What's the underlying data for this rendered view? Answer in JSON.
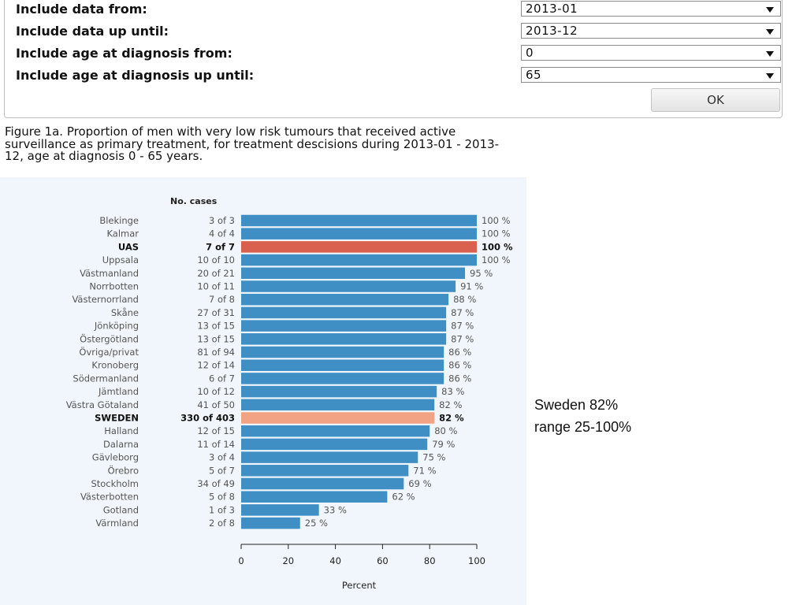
{
  "filters": [
    {
      "label": "Include data from:",
      "value": "2013-01"
    },
    {
      "label": "Include data up until:",
      "value": "2013-12"
    },
    {
      "label": "Include age at diagnosis from:",
      "value": "0"
    },
    {
      "label": "Include age at diagnosis up until:",
      "value": "65"
    }
  ],
  "ok_label": "OK",
  "caption": "Figure 1a. Proportion of men with very low risk tumours that received active surveillance as primary treatment, for treatment descisions during 2013-01 - 2013-12, age at diagnosis 0 - 65 years.",
  "annotation": {
    "line1": "Sweden 82%",
    "line2": "range 25-100%"
  },
  "colors": {
    "bar": "#3f8fc5",
    "highlight": "#d9604f",
    "national": "#f2a383"
  },
  "chart_data": {
    "type": "bar",
    "orientation": "horizontal",
    "cases_header": "No. cases",
    "xlabel": "Percent",
    "xlim": [
      0,
      100
    ],
    "xticks": [
      0,
      20,
      40,
      60,
      80,
      100
    ],
    "grid": false,
    "rows": [
      {
        "region": "Blekinge",
        "cases": "3 of 3",
        "value": 100,
        "label": "100 %",
        "style": "normal"
      },
      {
        "region": "Kalmar",
        "cases": "4 of 4",
        "value": 100,
        "label": "100 %",
        "style": "normal"
      },
      {
        "region": "UAS",
        "cases": "7 of 7",
        "value": 100,
        "label": "100 %",
        "style": "highlight"
      },
      {
        "region": "Uppsala",
        "cases": "10 of 10",
        "value": 100,
        "label": "100 %",
        "style": "normal"
      },
      {
        "region": "Västmanland",
        "cases": "20 of 21",
        "value": 95,
        "label": "95 %",
        "style": "normal"
      },
      {
        "region": "Norrbotten",
        "cases": "10 of 11",
        "value": 91,
        "label": "91 %",
        "style": "normal"
      },
      {
        "region": "Västernorrland",
        "cases": "7 of 8",
        "value": 88,
        "label": "88 %",
        "style": "normal"
      },
      {
        "region": "Skåne",
        "cases": "27 of 31",
        "value": 87,
        "label": "87 %",
        "style": "normal"
      },
      {
        "region": "Jönköping",
        "cases": "13 of 15",
        "value": 87,
        "label": "87 %",
        "style": "normal"
      },
      {
        "region": "Östergötland",
        "cases": "13 of 15",
        "value": 87,
        "label": "87 %",
        "style": "normal"
      },
      {
        "region": "Övriga/privat",
        "cases": "81 of 94",
        "value": 86,
        "label": "86 %",
        "style": "normal"
      },
      {
        "region": "Kronoberg",
        "cases": "12 of 14",
        "value": 86,
        "label": "86 %",
        "style": "normal"
      },
      {
        "region": "Södermanland",
        "cases": "6 of 7",
        "value": 86,
        "label": "86 %",
        "style": "normal"
      },
      {
        "region": "Jämtland",
        "cases": "10 of 12",
        "value": 83,
        "label": "83 %",
        "style": "normal"
      },
      {
        "region": "Västra Götaland",
        "cases": "41 of 50",
        "value": 82,
        "label": "82 %",
        "style": "normal"
      },
      {
        "region": "SWEDEN",
        "cases": "330 of 403",
        "value": 82,
        "label": "82 %",
        "style": "national"
      },
      {
        "region": "Halland",
        "cases": "12 of 15",
        "value": 80,
        "label": "80 %",
        "style": "normal"
      },
      {
        "region": "Dalarna",
        "cases": "11 of 14",
        "value": 79,
        "label": "79 %",
        "style": "normal"
      },
      {
        "region": "Gävleborg",
        "cases": "3 of 4",
        "value": 75,
        "label": "75 %",
        "style": "normal"
      },
      {
        "region": "Örebro",
        "cases": "5 of 7",
        "value": 71,
        "label": "71 %",
        "style": "normal"
      },
      {
        "region": "Stockholm",
        "cases": "34 of 49",
        "value": 69,
        "label": "69 %",
        "style": "normal"
      },
      {
        "region": "Västerbotten",
        "cases": "5 of 8",
        "value": 62,
        "label": "62 %",
        "style": "normal"
      },
      {
        "region": "Gotland",
        "cases": "1 of 3",
        "value": 33,
        "label": "33 %",
        "style": "normal"
      },
      {
        "region": "Värmland",
        "cases": "2 of 8",
        "value": 25,
        "label": "25 %",
        "style": "normal"
      }
    ]
  }
}
